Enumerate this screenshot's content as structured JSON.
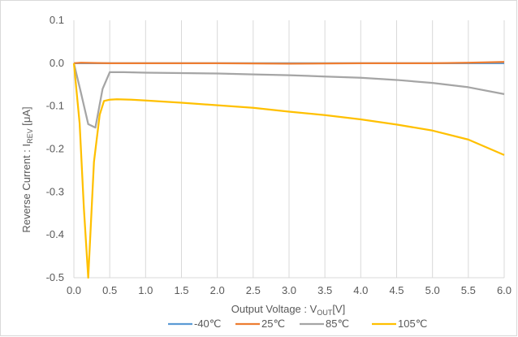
{
  "chart_data": {
    "type": "line",
    "title": "",
    "xlabel": {
      "text": "Output Voltage : V",
      "sub": "OUT",
      "suffix": "[V]"
    },
    "ylabel": {
      "text": "Reverse Current : I",
      "sub": "REV",
      "suffix": " [μA]"
    },
    "xlim": [
      0,
      6
    ],
    "ylim": [
      -0.5,
      0.1
    ],
    "xticks": [
      "0.0",
      "0.5",
      "1.0",
      "1.5",
      "2.0",
      "2.5",
      "3.0",
      "3.5",
      "4.0",
      "4.5",
      "5.0",
      "5.5",
      "6.0"
    ],
    "yticks": [
      "0.1",
      "0.0",
      "-0.1",
      "-0.2",
      "-0.3",
      "-0.4",
      "-0.5"
    ],
    "grid": "vertical",
    "legend_position": "bottom",
    "series": [
      {
        "name": "-40℃",
        "color": "#5b9bd5",
        "points": [
          [
            0,
            0.0
          ],
          [
            1,
            0.0
          ],
          [
            2,
            0.0
          ],
          [
            3,
            0.0
          ],
          [
            4,
            0.0
          ],
          [
            5,
            0.0
          ],
          [
            6,
            0.0
          ]
        ]
      },
      {
        "name": "25℃",
        "color": "#ed7d31",
        "points": [
          [
            0,
            0.0
          ],
          [
            0.1,
            0.001
          ],
          [
            0.5,
            0.0
          ],
          [
            1,
            0.0
          ],
          [
            2,
            0.0
          ],
          [
            3,
            -0.001
          ],
          [
            4,
            0.0
          ],
          [
            5,
            0.0
          ],
          [
            5.5,
            0.001
          ],
          [
            6,
            0.003
          ]
        ]
      },
      {
        "name": "85℃",
        "color": "#a5a5a5",
        "points": [
          [
            0,
            0.0
          ],
          [
            0.1,
            -0.07
          ],
          [
            0.2,
            -0.142
          ],
          [
            0.3,
            -0.15
          ],
          [
            0.4,
            -0.06
          ],
          [
            0.5,
            -0.021
          ],
          [
            0.7,
            -0.021
          ],
          [
            1.0,
            -0.022
          ],
          [
            1.5,
            -0.023
          ],
          [
            2.0,
            -0.024
          ],
          [
            2.5,
            -0.026
          ],
          [
            3.0,
            -0.028
          ],
          [
            3.5,
            -0.031
          ],
          [
            4.0,
            -0.034
          ],
          [
            4.5,
            -0.039
          ],
          [
            5.0,
            -0.046
          ],
          [
            5.5,
            -0.056
          ],
          [
            6.0,
            -0.072
          ]
        ]
      },
      {
        "name": "105℃",
        "color": "#ffc000",
        "points": [
          [
            0,
            0.0
          ],
          [
            0.08,
            -0.14
          ],
          [
            0.14,
            -0.34
          ],
          [
            0.2,
            -0.5
          ],
          [
            0.28,
            -0.23
          ],
          [
            0.36,
            -0.12
          ],
          [
            0.42,
            -0.088
          ],
          [
            0.5,
            -0.085
          ],
          [
            0.6,
            -0.084
          ],
          [
            0.8,
            -0.085
          ],
          [
            1.0,
            -0.087
          ],
          [
            1.5,
            -0.092
          ],
          [
            2.0,
            -0.098
          ],
          [
            2.5,
            -0.104
          ],
          [
            3.0,
            -0.113
          ],
          [
            3.5,
            -0.121
          ],
          [
            4.0,
            -0.131
          ],
          [
            4.5,
            -0.143
          ],
          [
            5.0,
            -0.157
          ],
          [
            5.5,
            -0.178
          ],
          [
            6.0,
            -0.214
          ]
        ]
      }
    ]
  }
}
